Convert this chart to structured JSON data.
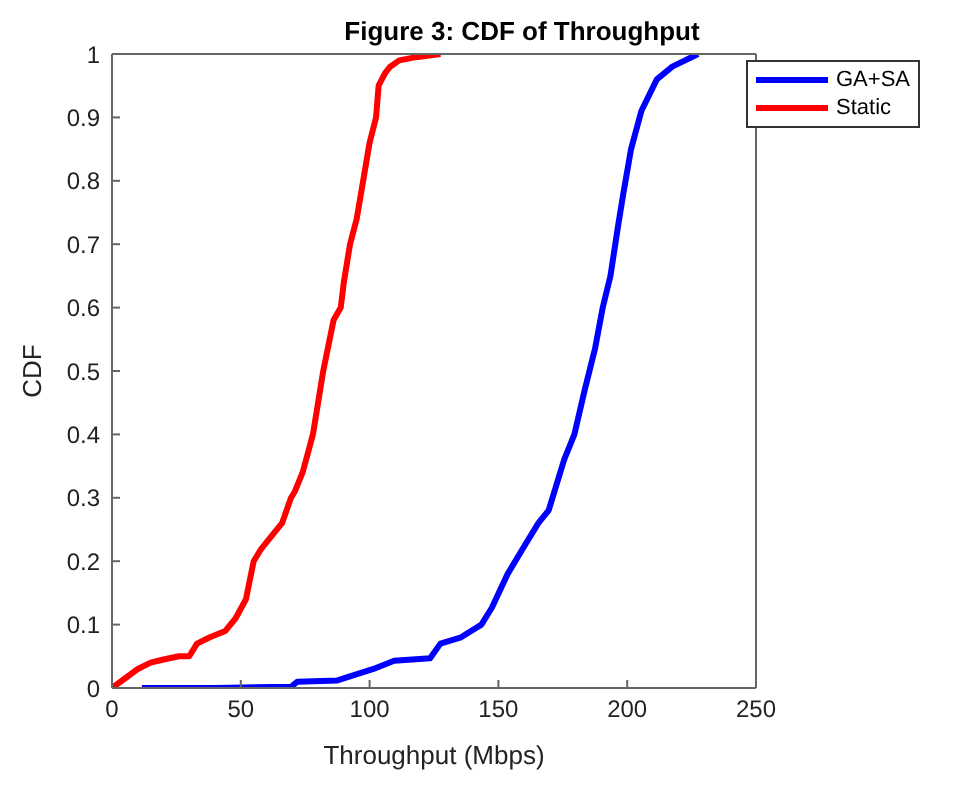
{
  "chart_data": {
    "type": "line",
    "title": "Figure 3: CDF of Throughput",
    "xlabel": "Throughput (Mbps)",
    "ylabel": "CDF",
    "xlim": [
      0,
      250
    ],
    "xticks": [
      0,
      50,
      100,
      150,
      200,
      250
    ],
    "ylim": [
      0,
      1
    ],
    "yticks": [
      0,
      0.1,
      0.2,
      0.3,
      0.4,
      0.5,
      0.6,
      0.7,
      0.8,
      0.9,
      1
    ],
    "legend": "top right",
    "marker": "none",
    "line_style": "solid",
    "series": [
      {
        "name": "GA+SA",
        "color": "#0000ff",
        "x": [
          11.6,
          40,
          69.5,
          72,
          87.5,
          101.5,
          109.5,
          123.5,
          127.5,
          135.5,
          143.4,
          147.5,
          153.6,
          159.5,
          165.5,
          169.5,
          175.5,
          179.5,
          183.5,
          187.5,
          190.5,
          193.5,
          196.5,
          198.5,
          201.5,
          205.5,
          211.5,
          217.5,
          227.5
        ],
        "values": [
          0,
          0,
          0.002,
          0.01,
          0.012,
          0.03,
          0.043,
          0.047,
          0.07,
          0.08,
          0.1,
          0.127,
          0.18,
          0.22,
          0.26,
          0.28,
          0.36,
          0.4,
          0.47,
          0.535,
          0.6,
          0.65,
          0.73,
          0.78,
          0.85,
          0.91,
          0.96,
          0.98,
          1
        ]
      },
      {
        "name": "Static",
        "color": "#ff0000",
        "x": [
          0,
          5,
          10,
          15,
          20,
          26,
          30,
          33,
          38,
          44,
          48,
          52,
          55,
          58,
          62,
          66,
          69.5,
          71,
          74,
          76,
          78,
          80,
          82,
          84,
          86,
          88.8,
          90,
          92.4,
          95,
          97.5,
          100,
          102.5,
          103.5,
          106,
          108,
          111.5,
          118,
          127.5
        ],
        "values": [
          0,
          0.015,
          0.03,
          0.04,
          0.045,
          0.05,
          0.05,
          0.07,
          0.08,
          0.09,
          0.11,
          0.14,
          0.2,
          0.22,
          0.24,
          0.26,
          0.3,
          0.31,
          0.34,
          0.37,
          0.4,
          0.45,
          0.5,
          0.54,
          0.58,
          0.6,
          0.64,
          0.7,
          0.74,
          0.8,
          0.86,
          0.9,
          0.95,
          0.97,
          0.98,
          0.99,
          0.995,
          1
        ]
      }
    ]
  }
}
